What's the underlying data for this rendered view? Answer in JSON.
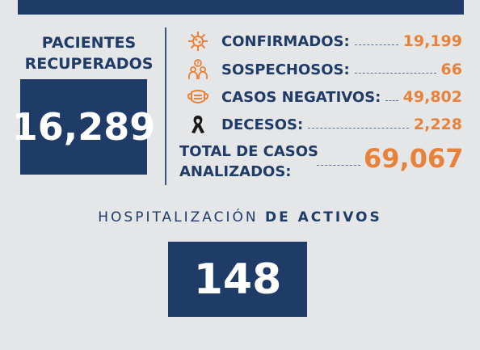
{
  "recovered": {
    "label_line1": "PACIENTES",
    "label_line2": "RECUPERADOS",
    "value": "16,289"
  },
  "stats": [
    {
      "label": "CONFIRMADOS:",
      "value": "19,199",
      "icon": "virus-icon"
    },
    {
      "label": "SOSPECHOSOS:",
      "value": "66",
      "icon": "suspect-people-icon"
    },
    {
      "label": "CASOS NEGATIVOS:",
      "value": "49,802",
      "icon": "face-mask-icon"
    },
    {
      "label": "DECESOS:",
      "value": "2,228",
      "icon": "mourning-ribbon-icon"
    }
  ],
  "total": {
    "label_line1": "TOTAL DE CASOS",
    "label_line2": "ANALIZADOS:",
    "value": "69,067"
  },
  "hospital": {
    "label_light": "HOSPITALIZACIÓN",
    "label_bold": "DE ACTIVOS",
    "value": "148"
  },
  "colors": {
    "navy": "#1f3b67",
    "orange": "#e8823a",
    "background": "#e4e6e8"
  }
}
